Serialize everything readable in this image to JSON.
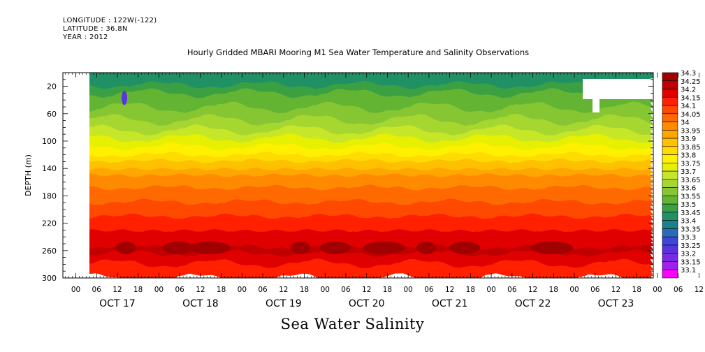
{
  "header": {
    "longitude": "LONGITUDE : 122W(-122)",
    "latitude": "LATITUDE : 36.8N",
    "year": "YEAR : 2012"
  },
  "chart_data": {
    "type": "heatmap",
    "title": "Hourly Gridded MBARI Mooring M1 Sea Water Temperature and Salinity Observations",
    "variable_title": "Sea Water Salinity",
    "ylabel": "DEPTH (m)",
    "y_axis": {
      "ylim": [
        0,
        300
      ],
      "inverted": true,
      "ticks": [
        20,
        60,
        100,
        140,
        180,
        220,
        260,
        300
      ]
    },
    "x_axis": {
      "hour_ticks": [
        "00",
        "06",
        "12",
        "18",
        "00",
        "06",
        "12",
        "18",
        "00",
        "06",
        "12",
        "18",
        "00",
        "06",
        "12",
        "18",
        "00",
        "06",
        "12",
        "18",
        "00",
        "06",
        "12",
        "18",
        "00",
        "06",
        "12",
        "18",
        "00",
        "06",
        "12",
        "18"
      ],
      "day_labels": [
        "OCT 17",
        "OCT 18",
        "OCT 19",
        "OCT 20",
        "OCT 21",
        "OCT 22",
        "OCT 23"
      ],
      "data_start": "OCT 17 03h",
      "data_end": "OCT 23 21h"
    },
    "colorbar": {
      "levels": [
        "34.3",
        "34.25",
        "34.2",
        "34.15",
        "34.1",
        "34.05",
        "34",
        "33.95",
        "33.9",
        "33.85",
        "33.8",
        "33.75",
        "33.7",
        "33.65",
        "33.6",
        "33.55",
        "33.5",
        "33.45",
        "33.4",
        "33.35",
        "33.3",
        "33.25",
        "33.2",
        "33.15",
        "33.1"
      ],
      "colors": [
        "#a00000",
        "#c00000",
        "#e00000",
        "#ff2000",
        "#ff4800",
        "#ff6a00",
        "#ff8a00",
        "#ffa600",
        "#ffc000",
        "#ffdc00",
        "#fff000",
        "#e6f000",
        "#c6e628",
        "#a6d630",
        "#86c632",
        "#62b432",
        "#3aa042",
        "#209065",
        "#1a808a",
        "#2a6ab8",
        "#3c46d8",
        "#5a32e0",
        "#7c28e6",
        "#a020f0",
        "#ff00ff"
      ],
      "contours_salinity_by_depth": [
        [
          5,
          33.45
        ],
        [
          30,
          33.55
        ],
        [
          60,
          33.62
        ],
        [
          90,
          33.72
        ],
        [
          120,
          33.85
        ],
        [
          150,
          34.0
        ],
        [
          180,
          34.08
        ],
        [
          210,
          34.15
        ],
        [
          240,
          34.22
        ],
        [
          260,
          34.26
        ],
        [
          280,
          34.2
        ],
        [
          300,
          34.18
        ]
      ]
    }
  }
}
